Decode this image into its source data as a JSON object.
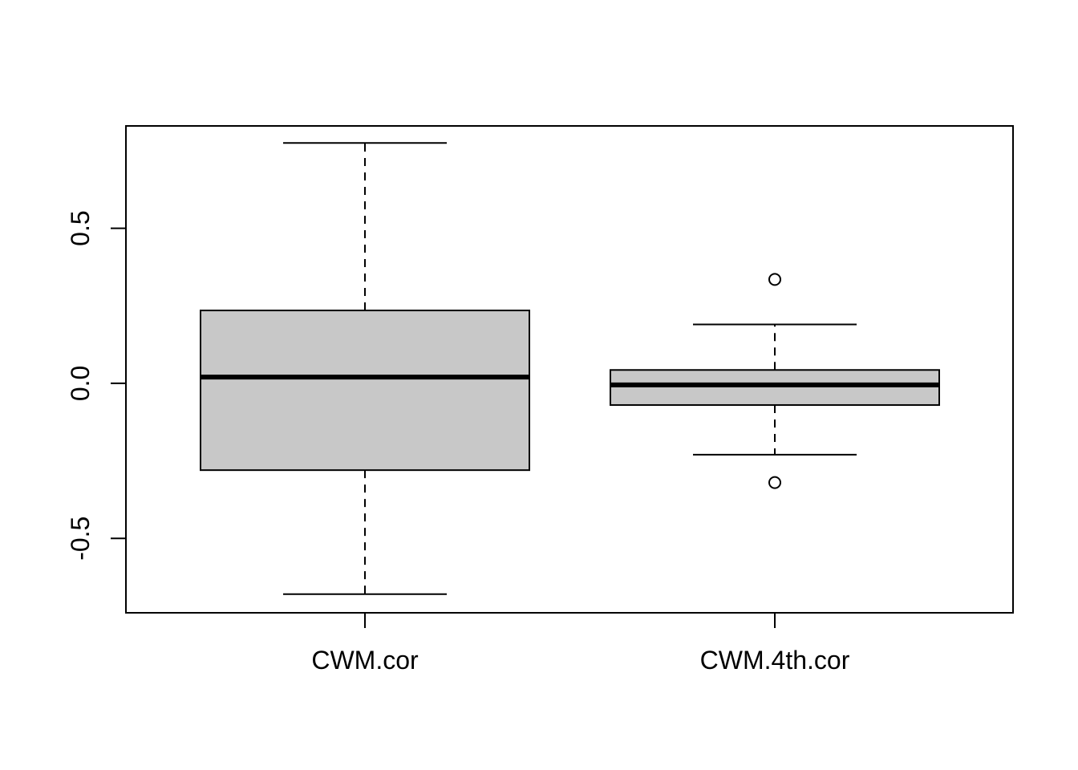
{
  "chart_data": {
    "type": "box",
    "categories": [
      "CWM.cor",
      "CWM.4th.cor"
    ],
    "series": [
      {
        "min": -0.68,
        "q1": -0.28,
        "median": 0.02,
        "q3": 0.235,
        "max": 0.775,
        "outliers": []
      },
      {
        "min": -0.23,
        "q1": -0.07,
        "median": -0.005,
        "q3": 0.043,
        "max": 0.19,
        "outliers": [
          0.335,
          -0.32
        ]
      }
    ],
    "ylim": [
      -0.74,
      0.83
    ],
    "yticks": [
      -0.5,
      0.0,
      0.5
    ],
    "ytick_labels": [
      "-0.5",
      "0.0",
      "0.5"
    ],
    "box_fill": "#c8c8c8",
    "line_color": "#000000"
  }
}
